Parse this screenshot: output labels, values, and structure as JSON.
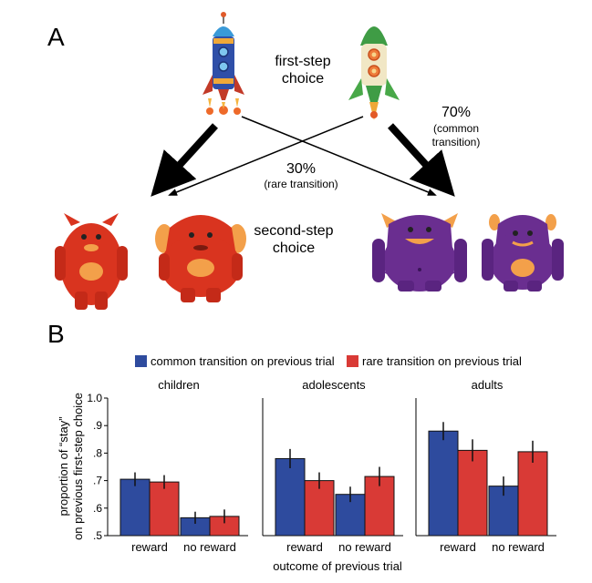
{
  "panel_a": {
    "label": "A",
    "first_step_line1": "first-step",
    "first_step_line2": "choice",
    "second_step_line1": "second-step",
    "second_step_line2": "choice",
    "common_pct": "70%",
    "common_line1": "(common",
    "common_line2": "transition)",
    "rare_pct": "30%",
    "rare_text": "(rare transition)",
    "colors": {
      "blue_rocket": "#2f4fa8",
      "green_rocket": "#48a848",
      "red_monster": "#d9341f",
      "purple_monster": "#6a2e90",
      "belly": "#f3a04a"
    }
  },
  "panel_b": {
    "label": "B"
  },
  "chart_data": {
    "type": "bar",
    "legend": {
      "common": "common transition on previous trial",
      "rare": "rare transition on previous trial",
      "placement": "top"
    },
    "series": [
      {
        "name": "common transition on previous trial",
        "color": "#2e4b9e"
      },
      {
        "name": "rare transition on previous trial",
        "color": "#d93a36"
      }
    ],
    "ylabel_line1": "proportion of “stay”",
    "ylabel_line2": "on previous first-step choice",
    "xlabel": "outcome of previous trial",
    "ylim": [
      0.5,
      1.0
    ],
    "yticks": [
      ".5",
      ".6",
      ".7",
      ".8",
      ".9",
      "1.0"
    ],
    "ytick_values": [
      0.5,
      0.6,
      0.7,
      0.8,
      0.9,
      1.0
    ],
    "categories": [
      "reward",
      "no reward"
    ],
    "groups": [
      {
        "title": "children",
        "common": [
          0.705,
          0.565
        ],
        "rare": [
          0.695,
          0.57
        ],
        "common_err": [
          0.025,
          0.022
        ],
        "rare_err": [
          0.025,
          0.025
        ]
      },
      {
        "title": "adolescents",
        "common": [
          0.78,
          0.65
        ],
        "rare": [
          0.7,
          0.715
        ],
        "common_err": [
          0.035,
          0.028
        ],
        "rare_err": [
          0.03,
          0.035
        ]
      },
      {
        "title": "adults",
        "common": [
          0.88,
          0.68
        ],
        "rare": [
          0.81,
          0.805
        ],
        "common_err": [
          0.033,
          0.035
        ],
        "rare_err": [
          0.04,
          0.04
        ]
      }
    ]
  }
}
